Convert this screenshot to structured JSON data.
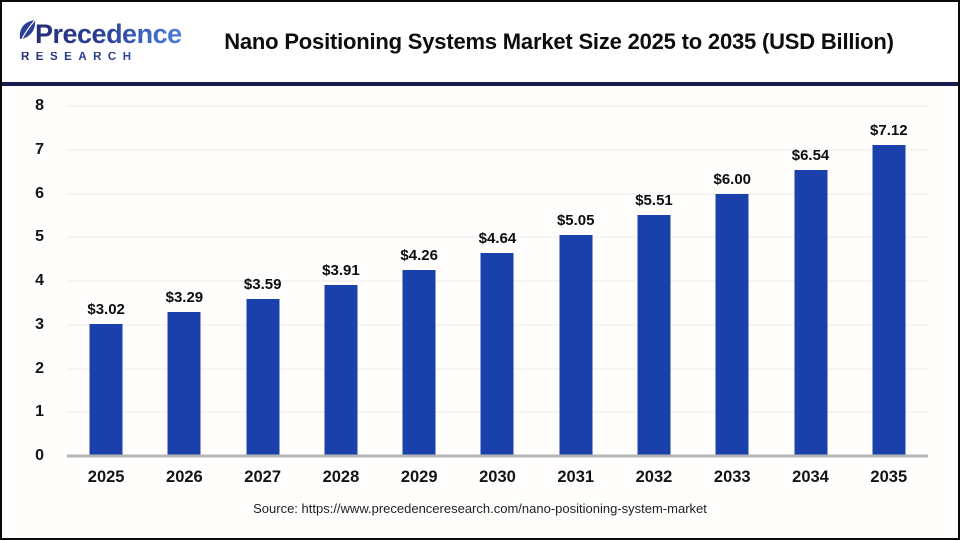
{
  "header": {
    "logo": {
      "name": "Precedence",
      "subname": "RESEARCH"
    }
  },
  "footer": {
    "source": "Source: https://www.precedenceresearch.com/nano-positioning-system-market"
  },
  "colors": {
    "bar": "#1a41ab",
    "separator": "#171b4d",
    "gridline": "#ececec",
    "baseline": "#b5b5b5",
    "logo_dark": "#252e75",
    "logo_light": "#4a7de2"
  },
  "chart_data": {
    "type": "bar",
    "title": "Nano Positioning Systems Market Size 2025 to 2035 (USD Billion)",
    "categories": [
      "2025",
      "2026",
      "2027",
      "2028",
      "2029",
      "2030",
      "2031",
      "2032",
      "2033",
      "2034",
      "2035"
    ],
    "values": [
      3.02,
      3.29,
      3.59,
      3.91,
      4.26,
      4.64,
      5.05,
      5.51,
      6.0,
      6.54,
      7.12
    ],
    "labels": [
      "$3.02",
      "$3.29",
      "$3.59",
      "$3.91",
      "$4.26",
      "$4.64",
      "$5.05",
      "$5.51",
      "$6.00",
      "$6.54",
      "$7.12"
    ],
    "xlabel": "",
    "ylabel": "",
    "ylim": [
      0,
      8
    ],
    "yticks": [
      0,
      1,
      2,
      3,
      4,
      5,
      6,
      7,
      8
    ],
    "grid": true,
    "legend": "none",
    "bar_color": "#1a41ab"
  }
}
